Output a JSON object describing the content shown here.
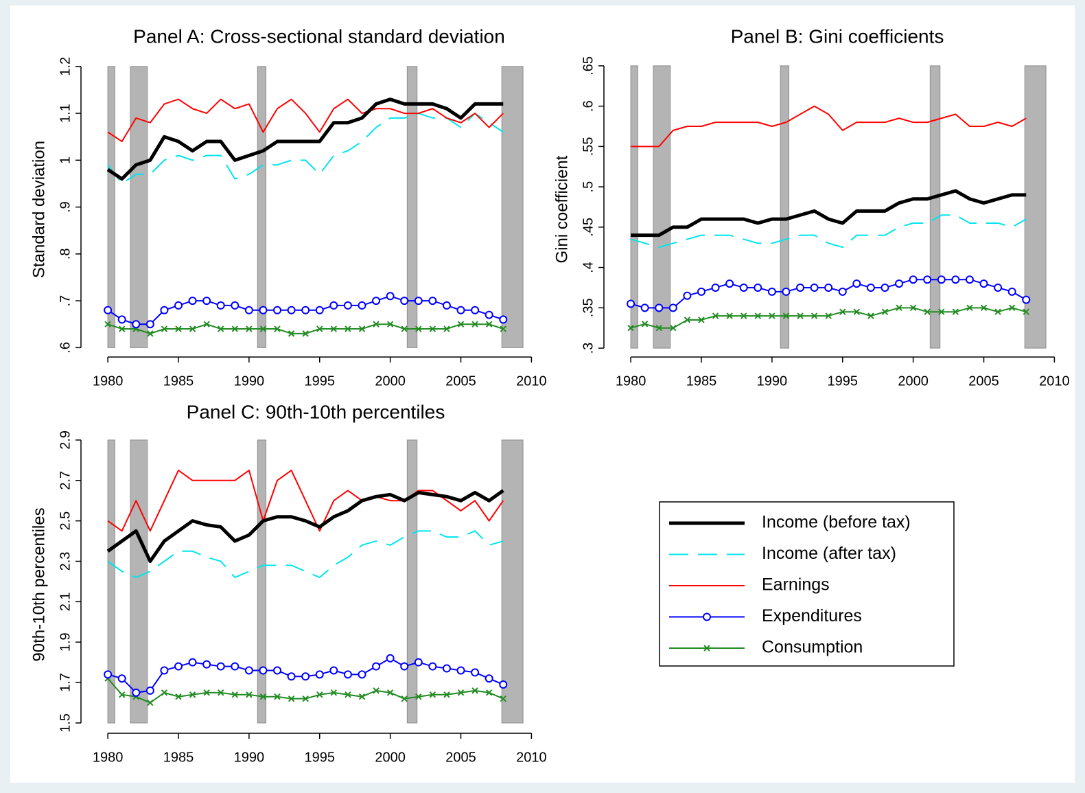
{
  "legend": [
    {
      "name": "Income (before tax)",
      "color": "#000000",
      "style": "thick"
    },
    {
      "name": "Income (after tax)",
      "color": "#00e5ee",
      "style": "dash"
    },
    {
      "name": "Earnings",
      "color": "#ff0000",
      "style": "solid"
    },
    {
      "name": "Expenditures",
      "color": "#0000ff",
      "style": "circle"
    },
    {
      "name": "Consumption",
      "color": "#228b22",
      "style": "cross"
    }
  ],
  "shaded_periods": [
    [
      1980.0,
      1980.5
    ],
    [
      1981.6,
      1982.8
    ],
    [
      1990.6,
      1991.2
    ],
    [
      2001.2,
      2001.9
    ],
    [
      2007.9,
      2009.4
    ]
  ],
  "chart_data": [
    {
      "type": "line",
      "title": "Panel A: Cross-sectional standard deviation",
      "y_label": "Standard deviation",
      "x": [
        1980,
        1981,
        1982,
        1983,
        1984,
        1985,
        1986,
        1987,
        1988,
        1989,
        1990,
        1991,
        1992,
        1993,
        1994,
        1995,
        1996,
        1997,
        1998,
        1999,
        2000,
        2001,
        2002,
        2003,
        2004,
        2005,
        2006,
        2007,
        2008
      ],
      "xlim": [
        1978.1,
        2011
      ],
      "xticks": [
        1980,
        1985,
        1990,
        1995,
        2000,
        2005,
        2010
      ],
      "ylim": [
        0.58,
        1.21
      ],
      "yticks": [
        {
          "value": 0.6,
          "label": ".6"
        },
        {
          "value": 0.7,
          "label": ".7"
        },
        {
          "value": 0.8,
          "label": ".8"
        },
        {
          "value": 0.9,
          "label": ".9"
        },
        1,
        1.1,
        1.2
      ],
      "series": [
        {
          "values": [
            0.98,
            0.96,
            0.99,
            1.0,
            1.05,
            1.04,
            1.02,
            1.04,
            1.04,
            1.0,
            1.01,
            1.02,
            1.04,
            1.04,
            1.04,
            1.04,
            1.08,
            1.08,
            1.09,
            1.12,
            1.13,
            1.12,
            1.12,
            1.12,
            1.11,
            1.09,
            1.12,
            1.12,
            1.12
          ]
        },
        {
          "values": [
            0.99,
            0.95,
            0.97,
            0.97,
            1.0,
            1.01,
            1.0,
            1.01,
            1.01,
            0.96,
            0.97,
            0.99,
            0.99,
            1.0,
            1.0,
            0.97,
            1.01,
            1.02,
            1.04,
            1.07,
            1.09,
            1.09,
            1.1,
            1.09,
            1.09,
            1.07,
            1.1,
            1.08,
            1.06
          ]
        },
        {
          "values": [
            1.06,
            1.04,
            1.09,
            1.08,
            1.12,
            1.13,
            1.11,
            1.1,
            1.13,
            1.11,
            1.12,
            1.06,
            1.11,
            1.13,
            1.1,
            1.06,
            1.11,
            1.13,
            1.1,
            1.11,
            1.11,
            1.1,
            1.1,
            1.11,
            1.09,
            1.08,
            1.1,
            1.07,
            1.1
          ]
        },
        {
          "values": [
            0.68,
            0.66,
            0.65,
            0.65,
            0.68,
            0.69,
            0.7,
            0.7,
            0.69,
            0.69,
            0.68,
            0.68,
            0.68,
            0.68,
            0.68,
            0.68,
            0.69,
            0.69,
            0.69,
            0.7,
            0.71,
            0.7,
            0.7,
            0.7,
            0.69,
            0.68,
            0.68,
            0.67,
            0.66
          ]
        },
        {
          "values": [
            0.65,
            0.64,
            0.64,
            0.63,
            0.64,
            0.64,
            0.64,
            0.65,
            0.64,
            0.64,
            0.64,
            0.64,
            0.64,
            0.63,
            0.63,
            0.64,
            0.64,
            0.64,
            0.64,
            0.65,
            0.65,
            0.64,
            0.64,
            0.64,
            0.64,
            0.65,
            0.65,
            0.65,
            0.64
          ]
        }
      ]
    },
    {
      "type": "line",
      "title": "Panel B: Gini coefficients",
      "y_label": "Gini coefficient",
      "x": [
        1980,
        1981,
        1982,
        1983,
        1984,
        1985,
        1986,
        1987,
        1988,
        1989,
        1990,
        1991,
        1992,
        1993,
        1994,
        1995,
        1996,
        1997,
        1998,
        1999,
        2000,
        2001,
        2002,
        2003,
        2004,
        2005,
        2006,
        2007,
        2008
      ],
      "xlim": [
        1978.1,
        2011
      ],
      "xticks": [
        1980,
        1985,
        1990,
        1995,
        2000,
        2005,
        2010
      ],
      "ylim": [
        0.289,
        0.655
      ],
      "yticks": [
        {
          "value": 0.3,
          "label": ".3"
        },
        {
          "value": 0.35,
          "label": ".35"
        },
        {
          "value": 0.4,
          "label": ".4"
        },
        {
          "value": 0.45,
          "label": ".45"
        },
        {
          "value": 0.5,
          "label": ".5"
        },
        {
          "value": 0.55,
          "label": ".55"
        },
        {
          "value": 0.6,
          "label": ".6"
        },
        {
          "value": 0.65,
          "label": ".65"
        }
      ],
      "series": [
        {
          "values": [
            0.44,
            0.44,
            0.44,
            0.45,
            0.45,
            0.46,
            0.46,
            0.46,
            0.46,
            0.455,
            0.46,
            0.46,
            0.465,
            0.47,
            0.46,
            0.455,
            0.47,
            0.47,
            0.47,
            0.48,
            0.485,
            0.485,
            0.49,
            0.495,
            0.485,
            0.48,
            0.485,
            0.49,
            0.49
          ]
        },
        {
          "values": [
            0.435,
            0.43,
            0.425,
            0.43,
            0.435,
            0.44,
            0.44,
            0.44,
            0.435,
            0.43,
            0.43,
            0.435,
            0.44,
            0.44,
            0.43,
            0.425,
            0.44,
            0.44,
            0.44,
            0.45,
            0.455,
            0.455,
            0.465,
            0.465,
            0.455,
            0.455,
            0.455,
            0.45,
            0.46
          ]
        },
        {
          "values": [
            0.55,
            0.55,
            0.55,
            0.57,
            0.575,
            0.575,
            0.58,
            0.58,
            0.58,
            0.58,
            0.575,
            0.58,
            0.59,
            0.6,
            0.59,
            0.57,
            0.58,
            0.58,
            0.58,
            0.585,
            0.58,
            0.58,
            0.585,
            0.59,
            0.575,
            0.575,
            0.58,
            0.575,
            0.585
          ]
        },
        {
          "values": [
            0.355,
            0.35,
            0.35,
            0.35,
            0.365,
            0.37,
            0.375,
            0.38,
            0.375,
            0.375,
            0.37,
            0.37,
            0.375,
            0.375,
            0.375,
            0.37,
            0.38,
            0.375,
            0.375,
            0.38,
            0.385,
            0.385,
            0.385,
            0.385,
            0.385,
            0.38,
            0.375,
            0.37,
            0.36
          ]
        },
        {
          "values": [
            0.325,
            0.33,
            0.325,
            0.325,
            0.335,
            0.335,
            0.34,
            0.34,
            0.34,
            0.34,
            0.34,
            0.34,
            0.34,
            0.34,
            0.34,
            0.345,
            0.345,
            0.34,
            0.345,
            0.35,
            0.35,
            0.345,
            0.345,
            0.345,
            0.35,
            0.35,
            0.345,
            0.35,
            0.345
          ]
        }
      ]
    },
    {
      "type": "line",
      "title": "Panel C: 90th-10th percentiles",
      "y_label": "90th-10th percentiles",
      "x": [
        1980,
        1981,
        1982,
        1983,
        1984,
        1985,
        1986,
        1987,
        1988,
        1989,
        1990,
        1991,
        1992,
        1993,
        1994,
        1995,
        1996,
        1997,
        1998,
        1999,
        2000,
        2001,
        2002,
        2003,
        2004,
        2005,
        2006,
        2007,
        2008
      ],
      "xlim": [
        1978.1,
        2011
      ],
      "xticks": [
        1980,
        1985,
        1990,
        1995,
        2000,
        2005,
        2010
      ],
      "ylim": [
        1.449,
        2.92
      ],
      "yticks": [
        1.5,
        1.7,
        1.9,
        2.1,
        2.3,
        2.5,
        2.7,
        2.9
      ],
      "series": [
        {
          "values": [
            2.35,
            2.4,
            2.45,
            2.3,
            2.4,
            2.45,
            2.5,
            2.48,
            2.47,
            2.4,
            2.43,
            2.5,
            2.52,
            2.52,
            2.5,
            2.47,
            2.52,
            2.55,
            2.6,
            2.62,
            2.63,
            2.6,
            2.64,
            2.63,
            2.62,
            2.6,
            2.64,
            2.6,
            2.65
          ]
        },
        {
          "values": [
            2.3,
            2.25,
            2.22,
            2.25,
            2.3,
            2.35,
            2.35,
            2.32,
            2.3,
            2.22,
            2.25,
            2.28,
            2.28,
            2.28,
            2.25,
            2.22,
            2.28,
            2.32,
            2.38,
            2.4,
            2.38,
            2.42,
            2.45,
            2.45,
            2.42,
            2.42,
            2.45,
            2.38,
            2.4
          ]
        },
        {
          "values": [
            2.5,
            2.45,
            2.6,
            2.45,
            2.6,
            2.75,
            2.7,
            2.7,
            2.7,
            2.7,
            2.75,
            2.5,
            2.7,
            2.75,
            2.6,
            2.45,
            2.6,
            2.65,
            2.6,
            2.62,
            2.6,
            2.6,
            2.65,
            2.65,
            2.6,
            2.55,
            2.6,
            2.5,
            2.6
          ]
        },
        {
          "values": [
            1.74,
            1.72,
            1.65,
            1.66,
            1.76,
            1.78,
            1.8,
            1.79,
            1.78,
            1.78,
            1.76,
            1.76,
            1.76,
            1.73,
            1.73,
            1.74,
            1.76,
            1.74,
            1.74,
            1.78,
            1.82,
            1.78,
            1.8,
            1.78,
            1.77,
            1.76,
            1.75,
            1.72,
            1.69
          ]
        },
        {
          "values": [
            1.72,
            1.64,
            1.63,
            1.6,
            1.65,
            1.63,
            1.64,
            1.65,
            1.65,
            1.64,
            1.64,
            1.63,
            1.63,
            1.62,
            1.62,
            1.64,
            1.65,
            1.64,
            1.63,
            1.66,
            1.65,
            1.62,
            1.63,
            1.64,
            1.64,
            1.65,
            1.66,
            1.65,
            1.62
          ]
        }
      ]
    }
  ]
}
